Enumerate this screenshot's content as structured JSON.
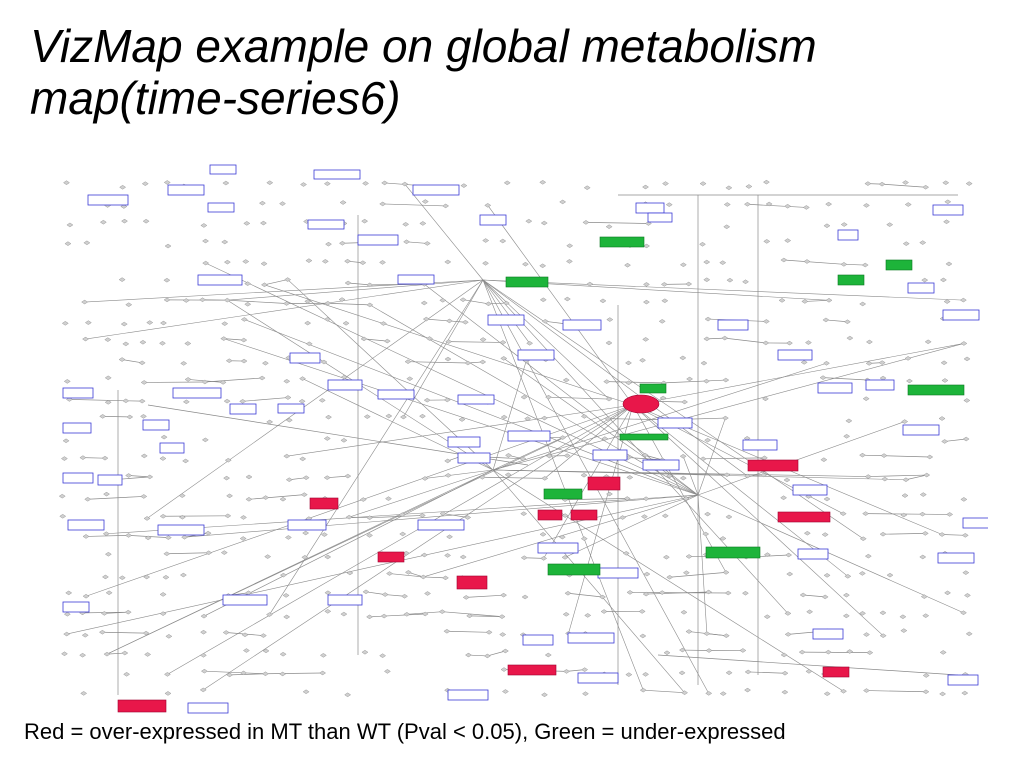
{
  "slide": {
    "title_line1": "VizMap example on global metabolism",
    "title_line2": "map(time-series6)",
    "caption": "Red = over-expressed in MT than WT (Pval < 0.05), Green = under-expressed"
  },
  "colors": {
    "over_expressed": "#e8174a",
    "under_expressed": "#1db43a",
    "node_border": "#3a3ad6",
    "edge": "#8a8a8a",
    "compound": "#d0d0d0"
  }
}
